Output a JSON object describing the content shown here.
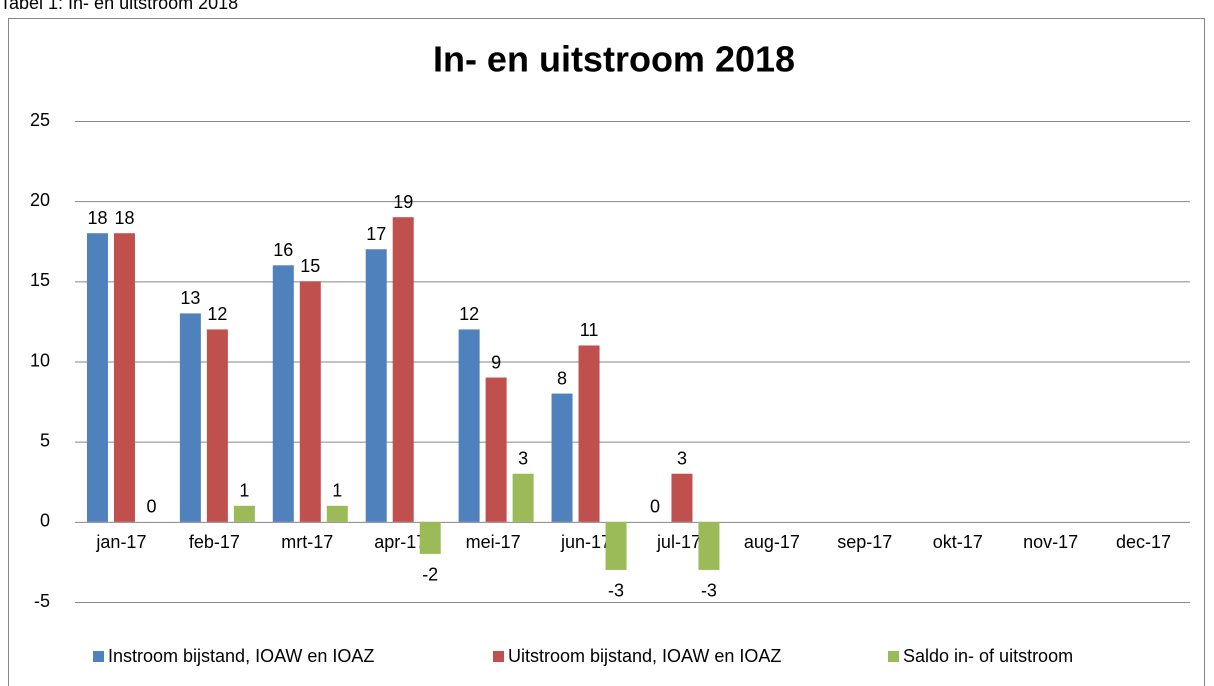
{
  "caption": "Tabel 1: In- en uitstroom 2018",
  "chart_data": {
    "type": "bar",
    "title": "In- en uitstroom 2018",
    "categories": [
      "jan-17",
      "feb-17",
      "mrt-17",
      "apr-17",
      "mei-17",
      "jun-17",
      "jul-17",
      "aug-17",
      "sep-17",
      "okt-17",
      "nov-17",
      "dec-17"
    ],
    "series": [
      {
        "name": "Instroom bijstand, IOAW en IOAZ",
        "color": "#4f81bd",
        "values": [
          18,
          13,
          16,
          17,
          12,
          8,
          0,
          null,
          null,
          null,
          null,
          null
        ]
      },
      {
        "name": "Uitstroom bijstand, IOAW en IOAZ",
        "color": "#c0504d",
        "values": [
          18,
          12,
          15,
          19,
          9,
          11,
          3,
          null,
          null,
          null,
          null,
          null
        ]
      },
      {
        "name": "Saldo in- of uitstroom",
        "color": "#9bbb59",
        "values": [
          0,
          1,
          1,
          -2,
          3,
          -3,
          -3,
          null,
          null,
          null,
          null,
          null
        ]
      }
    ],
    "ylim": [
      -5,
      25
    ],
    "yticks": [
      -5,
      0,
      5,
      10,
      15,
      20,
      25
    ],
    "grid": true,
    "legend": "bottom",
    "data_labels": true
  }
}
